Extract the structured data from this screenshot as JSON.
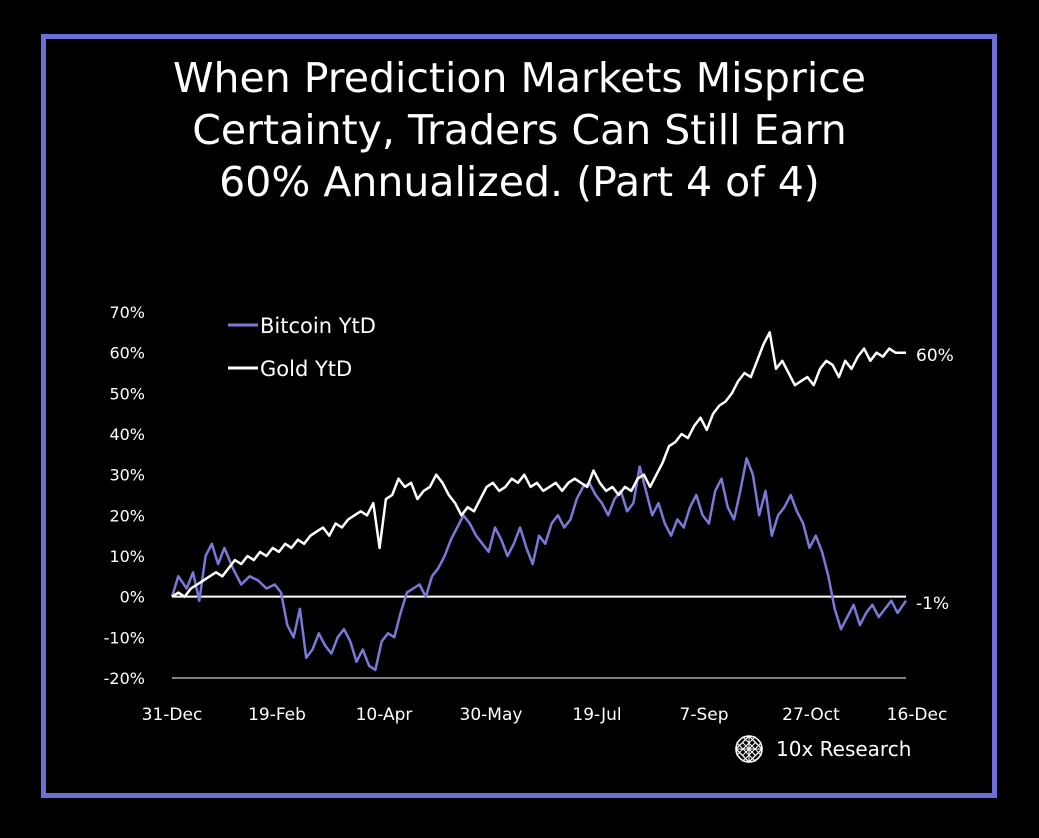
{
  "title_lines": [
    "When Prediction Markets Misprice",
    "Certainty, Traders Can Still Earn",
    "60% Annualized. (Part 4 of 4)"
  ],
  "brand": {
    "name": "10x Research",
    "icon": "lattice-logo-icon"
  },
  "colors": {
    "background": "#000000",
    "frame": "#6b6fd6",
    "bitcoin": "#7b78d8",
    "gold": "#ffffff",
    "zero_line": "#ffffff"
  },
  "chart_data": {
    "type": "line",
    "title": "",
    "xlabel": "",
    "ylabel": "",
    "ylim": [
      -20,
      70
    ],
    "y_ticks": [
      "70%",
      "60%",
      "50%",
      "40%",
      "30%",
      "20%",
      "10%",
      "0%",
      "-10%",
      "-20%"
    ],
    "x_ticks": [
      "31-Dec",
      "19-Feb",
      "10-Apr",
      "30-May",
      "19-Jul",
      "7-Sep",
      "27-Oct",
      "16-Dec"
    ],
    "legend": {
      "position": "top-left",
      "entries": [
        "Bitcoin YtD",
        "Gold YtD"
      ]
    },
    "end_labels": {
      "gold": "60%",
      "bitcoin": "-1%"
    },
    "series": [
      {
        "name": "Bitcoin YtD",
        "color": "#7b78d8",
        "x_days": [
          0,
          3,
          7,
          10,
          13,
          16,
          19,
          22,
          25,
          29,
          33,
          37,
          41,
          45,
          49,
          52,
          55,
          58,
          61,
          64,
          67,
          70,
          73,
          76,
          79,
          82,
          85,
          88,
          91,
          94,
          97,
          100,
          103,
          106,
          109,
          112,
          115,
          118,
          121,
          124,
          127,
          130,
          133,
          136,
          139,
          142,
          145,
          148,
          151,
          154,
          157,
          160,
          163,
          166,
          169,
          172,
          175,
          178,
          181,
          184,
          187,
          190,
          193,
          196,
          199,
          202,
          205,
          208,
          211,
          214,
          217,
          220,
          223,
          226,
          229,
          232,
          235,
          238,
          241,
          244,
          247,
          250,
          253,
          256,
          259,
          262,
          265,
          268,
          271,
          274,
          277,
          280,
          283,
          286,
          289,
          292,
          295,
          298,
          301,
          304,
          307,
          310,
          313,
          316,
          319,
          322,
          325,
          328,
          331,
          334,
          337,
          340,
          343,
          346,
          350
        ],
        "values": [
          0,
          5,
          2,
          6,
          -1,
          10,
          13,
          8,
          12,
          7,
          3,
          5,
          4,
          2,
          3,
          1,
          -7,
          -10,
          -3,
          -15,
          -13,
          -9,
          -12,
          -14,
          -10,
          -8,
          -11,
          -16,
          -13,
          -17,
          -18,
          -11,
          -9,
          -10,
          -4,
          1,
          2,
          3,
          0,
          5,
          7,
          10,
          14,
          17,
          20,
          18,
          15,
          13,
          11,
          17,
          14,
          10,
          13,
          17,
          12,
          8,
          15,
          13,
          18,
          20,
          17,
          19,
          24,
          27,
          28,
          25,
          23,
          20,
          24,
          26,
          21,
          23,
          32,
          26,
          20,
          23,
          18,
          15,
          19,
          17,
          22,
          25,
          20,
          18,
          26,
          29,
          22,
          19,
          26,
          34,
          30,
          20,
          26,
          15,
          20,
          22,
          25,
          21,
          18,
          12,
          15,
          11,
          5,
          -3,
          -8,
          -5,
          -2,
          -7,
          -4,
          -2,
          -5,
          -3,
          -1,
          -4,
          -1
        ]
      },
      {
        "name": "Gold YtD",
        "color": "#ffffff",
        "x_days": [
          0,
          3,
          6,
          9,
          12,
          15,
          18,
          21,
          24,
          27,
          30,
          33,
          36,
          39,
          42,
          45,
          48,
          51,
          54,
          57,
          60,
          63,
          66,
          69,
          72,
          75,
          78,
          81,
          84,
          87,
          90,
          93,
          96,
          99,
          102,
          105,
          108,
          111,
          114,
          117,
          120,
          123,
          126,
          129,
          132,
          135,
          138,
          141,
          144,
          147,
          150,
          153,
          156,
          159,
          162,
          165,
          168,
          171,
          174,
          177,
          180,
          183,
          186,
          189,
          192,
          195,
          198,
          201,
          204,
          207,
          210,
          213,
          216,
          219,
          222,
          225,
          228,
          231,
          234,
          237,
          240,
          243,
          246,
          249,
          252,
          255,
          258,
          261,
          264,
          267,
          270,
          273,
          276,
          279,
          282,
          285,
          288,
          291,
          294,
          297,
          300,
          303,
          306,
          309,
          312,
          315,
          318,
          321,
          324,
          327,
          330,
          333,
          336,
          339,
          342,
          345,
          350
        ],
        "values": [
          0,
          1,
          0,
          2,
          3,
          4,
          5,
          6,
          5,
          7,
          9,
          8,
          10,
          9,
          11,
          10,
          12,
          11,
          13,
          12,
          14,
          13,
          15,
          16,
          17,
          15,
          18,
          17,
          19,
          20,
          21,
          20,
          23,
          12,
          24,
          25,
          29,
          27,
          28,
          24,
          26,
          27,
          30,
          28,
          25,
          23,
          20,
          22,
          21,
          24,
          27,
          28,
          26,
          27,
          29,
          28,
          30,
          27,
          28,
          26,
          27,
          28,
          26,
          28,
          29,
          28,
          27,
          31,
          28,
          26,
          27,
          25,
          27,
          26,
          29,
          30,
          27,
          30,
          33,
          37,
          38,
          40,
          39,
          42,
          44,
          41,
          45,
          47,
          48,
          50,
          53,
          55,
          54,
          58,
          62,
          65,
          56,
          58,
          55,
          52,
          53,
          54,
          52,
          56,
          58,
          57,
          54,
          58,
          56,
          59,
          61,
          58,
          60,
          59,
          61,
          60,
          60
        ]
      }
    ]
  }
}
